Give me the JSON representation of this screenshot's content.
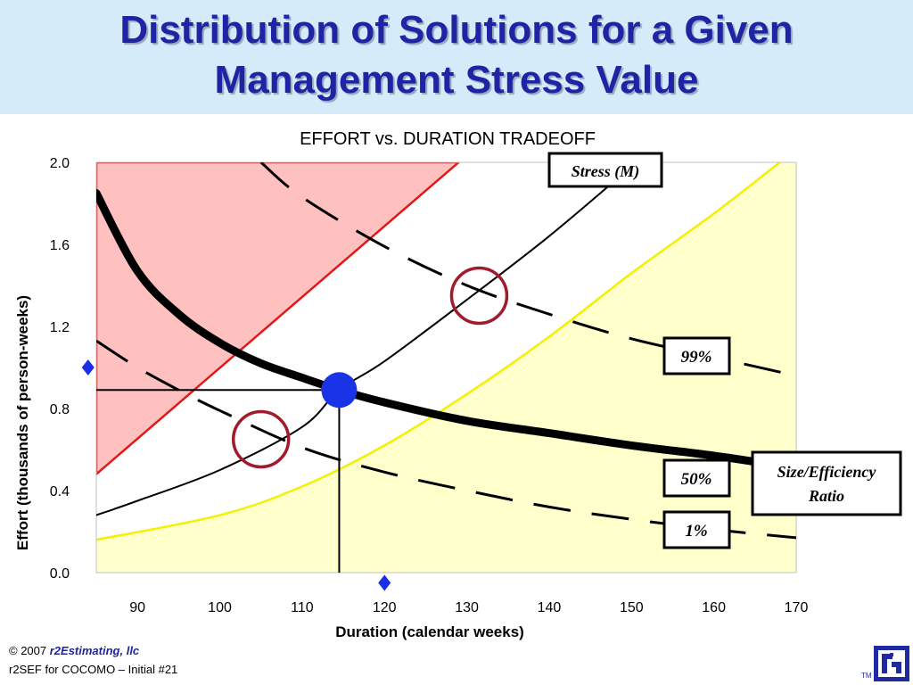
{
  "slide": {
    "title_line1": "Distribution of Solutions for a Given",
    "title_line2": "Management Stress Value"
  },
  "footer": {
    "copyright_prefix": "© 2007 ",
    "company": "r2Estimating, llc",
    "subtitle": "r2SEF for COCOMO – Initial #21",
    "tm": "TM"
  },
  "colors": {
    "title_text": "#1f24a4",
    "title_band": "#d6ebfa",
    "red_region_fill": "#ffc0c0",
    "red_region_edge": "#e01818",
    "yellow_region_fill": "#ffffcc",
    "yellow_region_edge": "#f2f200",
    "highlight_circle": "#a01c2c",
    "solution_point": "#1a33e6",
    "marker": "#1a2ee8"
  },
  "chart_data": {
    "type": "line",
    "title": "EFFORT vs. DURATION TRADEOFF",
    "xlabel": "Duration (calendar weeks)",
    "ylabel": "Effort (thousands of person-weeks)",
    "xlim": [
      85,
      170
    ],
    "ylim": [
      0,
      2
    ],
    "xticks": [
      90,
      100,
      110,
      120,
      130,
      140,
      150,
      160,
      170
    ],
    "yticks": [
      {
        "value": 0.0,
        "label": "0.0"
      },
      {
        "value": 0.4,
        "label": "0.4"
      },
      {
        "value": 0.8,
        "label": "0.8"
      },
      {
        "value": 1.2,
        "label": "1.2"
      },
      {
        "value": 1.6,
        "label": "1.6"
      },
      {
        "value": 2.0,
        "label": "2.0"
      }
    ],
    "grid": false,
    "regions": [
      {
        "id": "red",
        "points": [
          [
            85,
            0.48
          ],
          [
            85,
            2.0
          ],
          [
            129,
            2.0
          ]
        ]
      },
      {
        "id": "yellow",
        "points": [
          [
            85,
            0.0
          ],
          [
            85,
            0.16
          ],
          [
            100,
            0.28
          ],
          [
            110,
            0.42
          ],
          [
            120,
            0.62
          ],
          [
            130,
            0.87
          ],
          [
            140,
            1.15
          ],
          [
            150,
            1.46
          ],
          [
            160,
            1.75
          ],
          [
            168,
            2.0
          ],
          [
            170,
            2.0
          ],
          [
            170,
            0.0
          ]
        ]
      }
    ],
    "series": [
      {
        "id": "size_efficiency",
        "style": "thick",
        "points": [
          [
            85,
            1.85
          ],
          [
            90,
            1.47
          ],
          [
            95,
            1.26
          ],
          [
            100,
            1.12
          ],
          [
            105,
            1.02
          ],
          [
            110,
            0.95
          ],
          [
            114.5,
            0.89
          ],
          [
            120,
            0.83
          ],
          [
            130,
            0.74
          ],
          [
            140,
            0.68
          ],
          [
            150,
            0.62
          ],
          [
            160,
            0.57
          ],
          [
            165,
            0.54
          ]
        ]
      },
      {
        "id": "stress",
        "style": "thin",
        "points": [
          [
            85,
            0.28
          ],
          [
            90,
            0.35
          ],
          [
            100,
            0.5
          ],
          [
            110,
            0.71
          ],
          [
            114.5,
            0.89
          ],
          [
            120,
            1.03
          ],
          [
            130,
            1.33
          ],
          [
            140,
            1.64
          ],
          [
            150,
            1.98
          ]
        ]
      },
      {
        "id": "pct_99",
        "style": "dashed",
        "points": [
          [
            105,
            2.0
          ],
          [
            110,
            1.83
          ],
          [
            120,
            1.59
          ],
          [
            130,
            1.4
          ],
          [
            140,
            1.26
          ],
          [
            150,
            1.14
          ],
          [
            160,
            1.05
          ],
          [
            170,
            0.96
          ]
        ]
      },
      {
        "id": "pct_1",
        "style": "dashed",
        "points": [
          [
            85,
            1.13
          ],
          [
            90,
            1.0
          ],
          [
            95,
            0.89
          ],
          [
            100,
            0.79
          ],
          [
            110,
            0.61
          ],
          [
            120,
            0.49
          ],
          [
            130,
            0.4
          ],
          [
            140,
            0.32
          ],
          [
            150,
            0.26
          ],
          [
            160,
            0.21
          ],
          [
            170,
            0.17
          ]
        ]
      }
    ],
    "reference_point": {
      "x": 114.5,
      "y": 0.89
    },
    "highlight_circles": [
      {
        "x": 105,
        "y": 0.65
      },
      {
        "x": 131.5,
        "y": 1.35
      }
    ],
    "diamond_markers": [
      {
        "x": 120,
        "y": -0.05
      },
      {
        "x": 84,
        "y": 1.0
      }
    ],
    "annotations": [
      {
        "id": "stress_label",
        "text": "Stress (M)",
        "anchor": {
          "x": 150,
          "y": 1.98
        }
      },
      {
        "id": "label_99",
        "text": "99%"
      },
      {
        "id": "label_50",
        "text": "50%"
      },
      {
        "id": "label_1",
        "text": "1%"
      },
      {
        "id": "size_label",
        "lines": [
          "Size/Efficiency",
          "Ratio"
        ]
      }
    ]
  }
}
